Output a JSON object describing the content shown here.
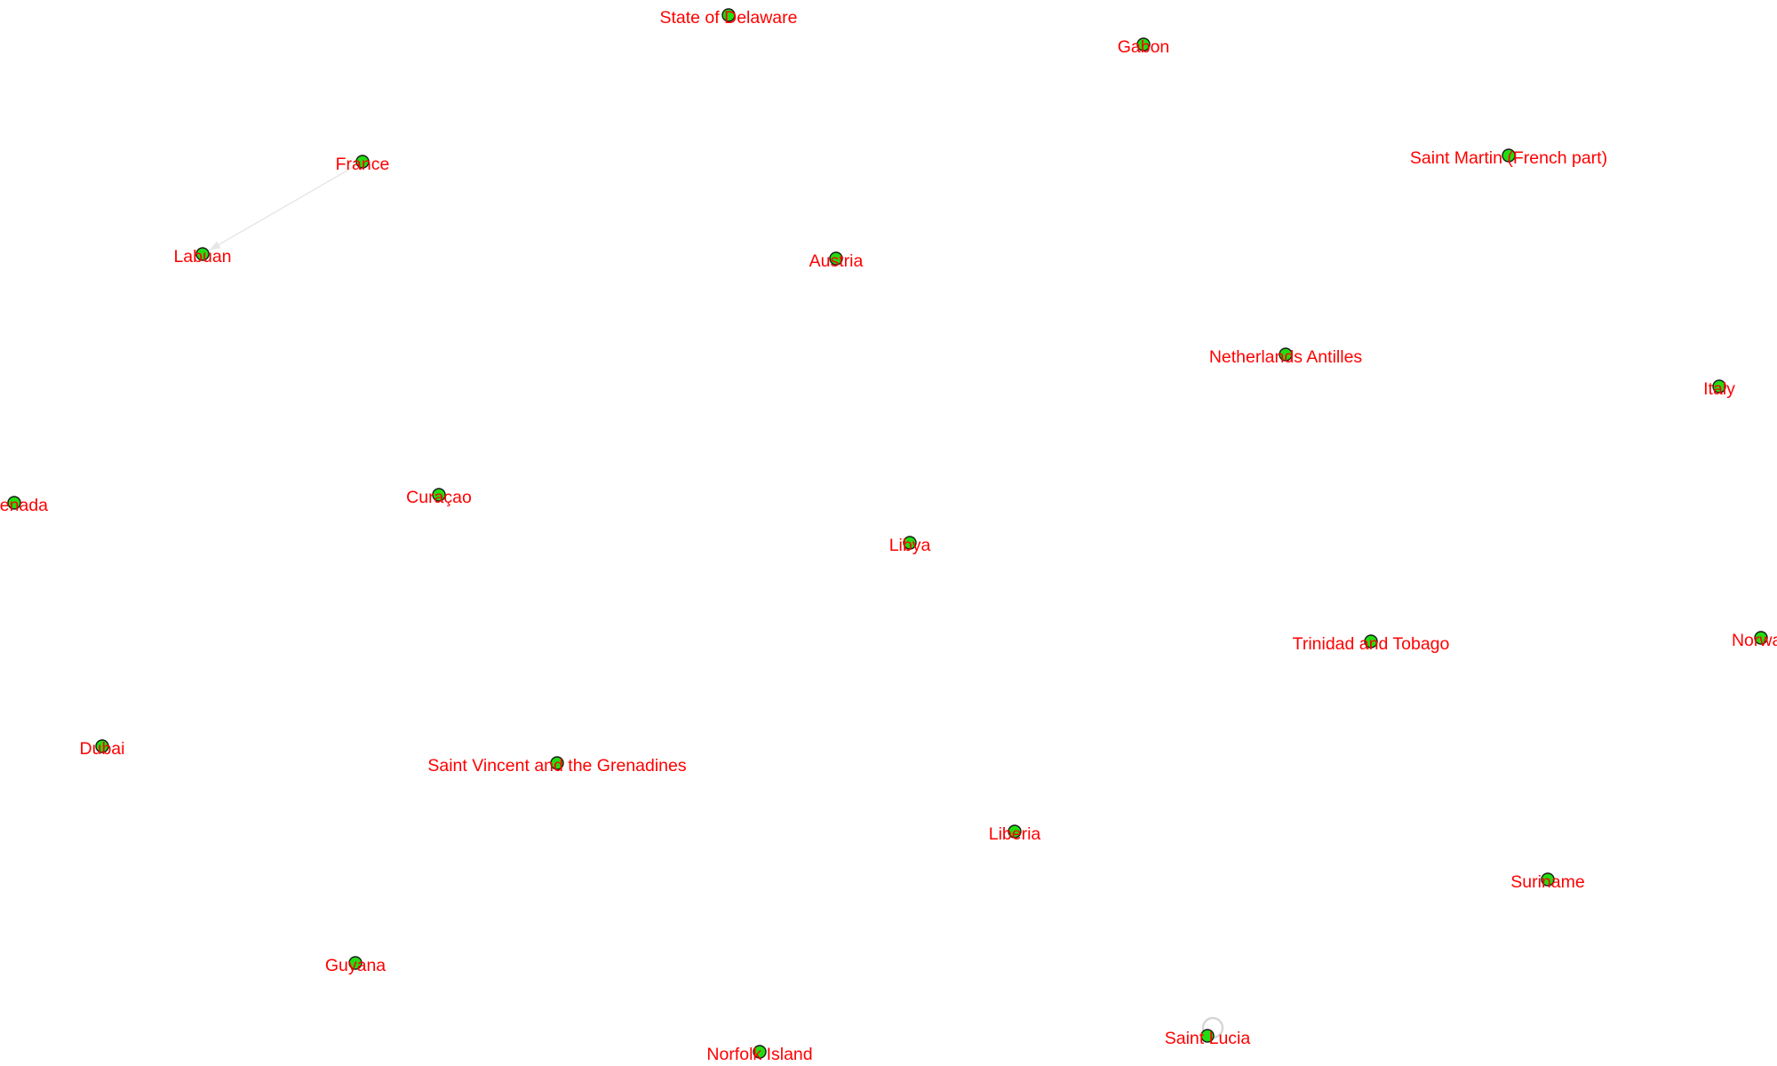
{
  "graph": {
    "nodes": [
      {
        "id": "state-of-delaware",
        "label": "State of Delaware"
      },
      {
        "id": "gabon",
        "label": "Gabon"
      },
      {
        "id": "france",
        "label": "France"
      },
      {
        "id": "saint-martin",
        "label": "Saint Martin (French part)"
      },
      {
        "id": "labuan",
        "label": "Labuan"
      },
      {
        "id": "austria",
        "label": "Austria"
      },
      {
        "id": "netherlands-antilles",
        "label": "Netherlands Antilles"
      },
      {
        "id": "italy",
        "label": "Italy"
      },
      {
        "id": "grenada",
        "label": "Grenada"
      },
      {
        "id": "curacao",
        "label": "Curaçao"
      },
      {
        "id": "libya",
        "label": "Libya"
      },
      {
        "id": "trinidad-and-tobago",
        "label": "Trinidad and Tobago"
      },
      {
        "id": "norway",
        "label": "Norway"
      },
      {
        "id": "dubai",
        "label": "Dubai"
      },
      {
        "id": "saint-vincent",
        "label": "Saint Vincent and the Grenadines"
      },
      {
        "id": "liberia",
        "label": "Liberia"
      },
      {
        "id": "suriname",
        "label": "Suriname"
      },
      {
        "id": "guyana",
        "label": "Guyana"
      },
      {
        "id": "norfolk-island",
        "label": "Norfolk Island"
      },
      {
        "id": "saint-lucia",
        "label": "Saint Lucia"
      }
    ],
    "edges": [
      {
        "source": "france",
        "target": "labuan",
        "directed": true
      }
    ],
    "self_loops": [
      "saint-lucia"
    ],
    "colors": {
      "node_fill": "#22dd11",
      "node_stroke": "#1a1a1a",
      "label": "#ff0000",
      "edge": "#e6e6e6",
      "background": "#ffffff"
    }
  }
}
